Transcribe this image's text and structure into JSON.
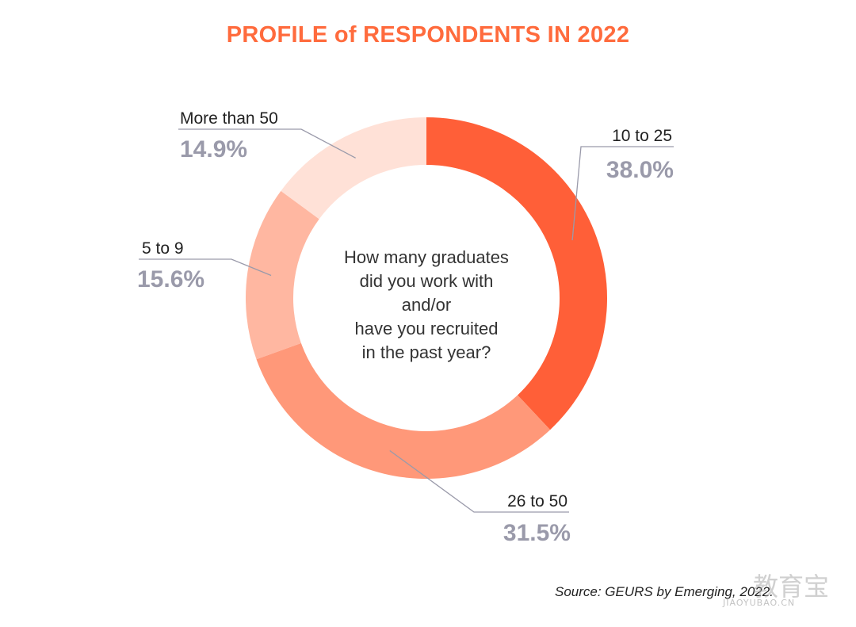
{
  "title": "PROFILE of RESPONDENTS IN 2022",
  "center_question": [
    "How many graduates",
    "did you work with",
    "and/or",
    "have you recruited",
    "in the past year?"
  ],
  "source": "Source: GEURS by Emerging, 2022.",
  "watermark": {
    "chinese": "教育宝",
    "latin": "JIAOYUBAO.CN"
  },
  "colors": {
    "title": "#ff6b3d",
    "label_text": "#222222",
    "percent_text": "#9a9aaa",
    "leader_line": "#9a9aaa"
  },
  "chart_data": {
    "type": "pie",
    "donut": true,
    "slices": [
      {
        "label": "10 to 25",
        "value": 38.0,
        "display": "38.0%",
        "color": "#ff5f38"
      },
      {
        "label": "26 to 50",
        "value": 31.5,
        "display": "31.5%",
        "color": "#ff9879"
      },
      {
        "label": "5 to 9",
        "value": 15.6,
        "display": "15.6%",
        "color": "#ffb7a1"
      },
      {
        "label": "More than 50",
        "value": 14.9,
        "display": "14.9%",
        "color": "#ffe1d7"
      }
    ]
  }
}
